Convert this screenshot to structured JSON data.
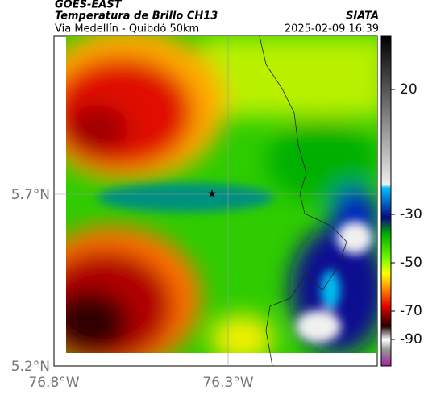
{
  "header": {
    "source": "GOES-EAST",
    "product": "Temperatura de Brillo CH13",
    "agency": "SIATA",
    "region": "Via Medellín - Quibdó 50km",
    "timestamp": "2025-02-09 16:39"
  },
  "axes": {
    "y_labels": [
      "5.7°N",
      "5.2°N"
    ],
    "x_labels": [
      "76.8°W",
      "76.3°W"
    ]
  },
  "colorbar": {
    "ticks": [
      20,
      -30,
      -50,
      -70,
      -90
    ]
  }
}
